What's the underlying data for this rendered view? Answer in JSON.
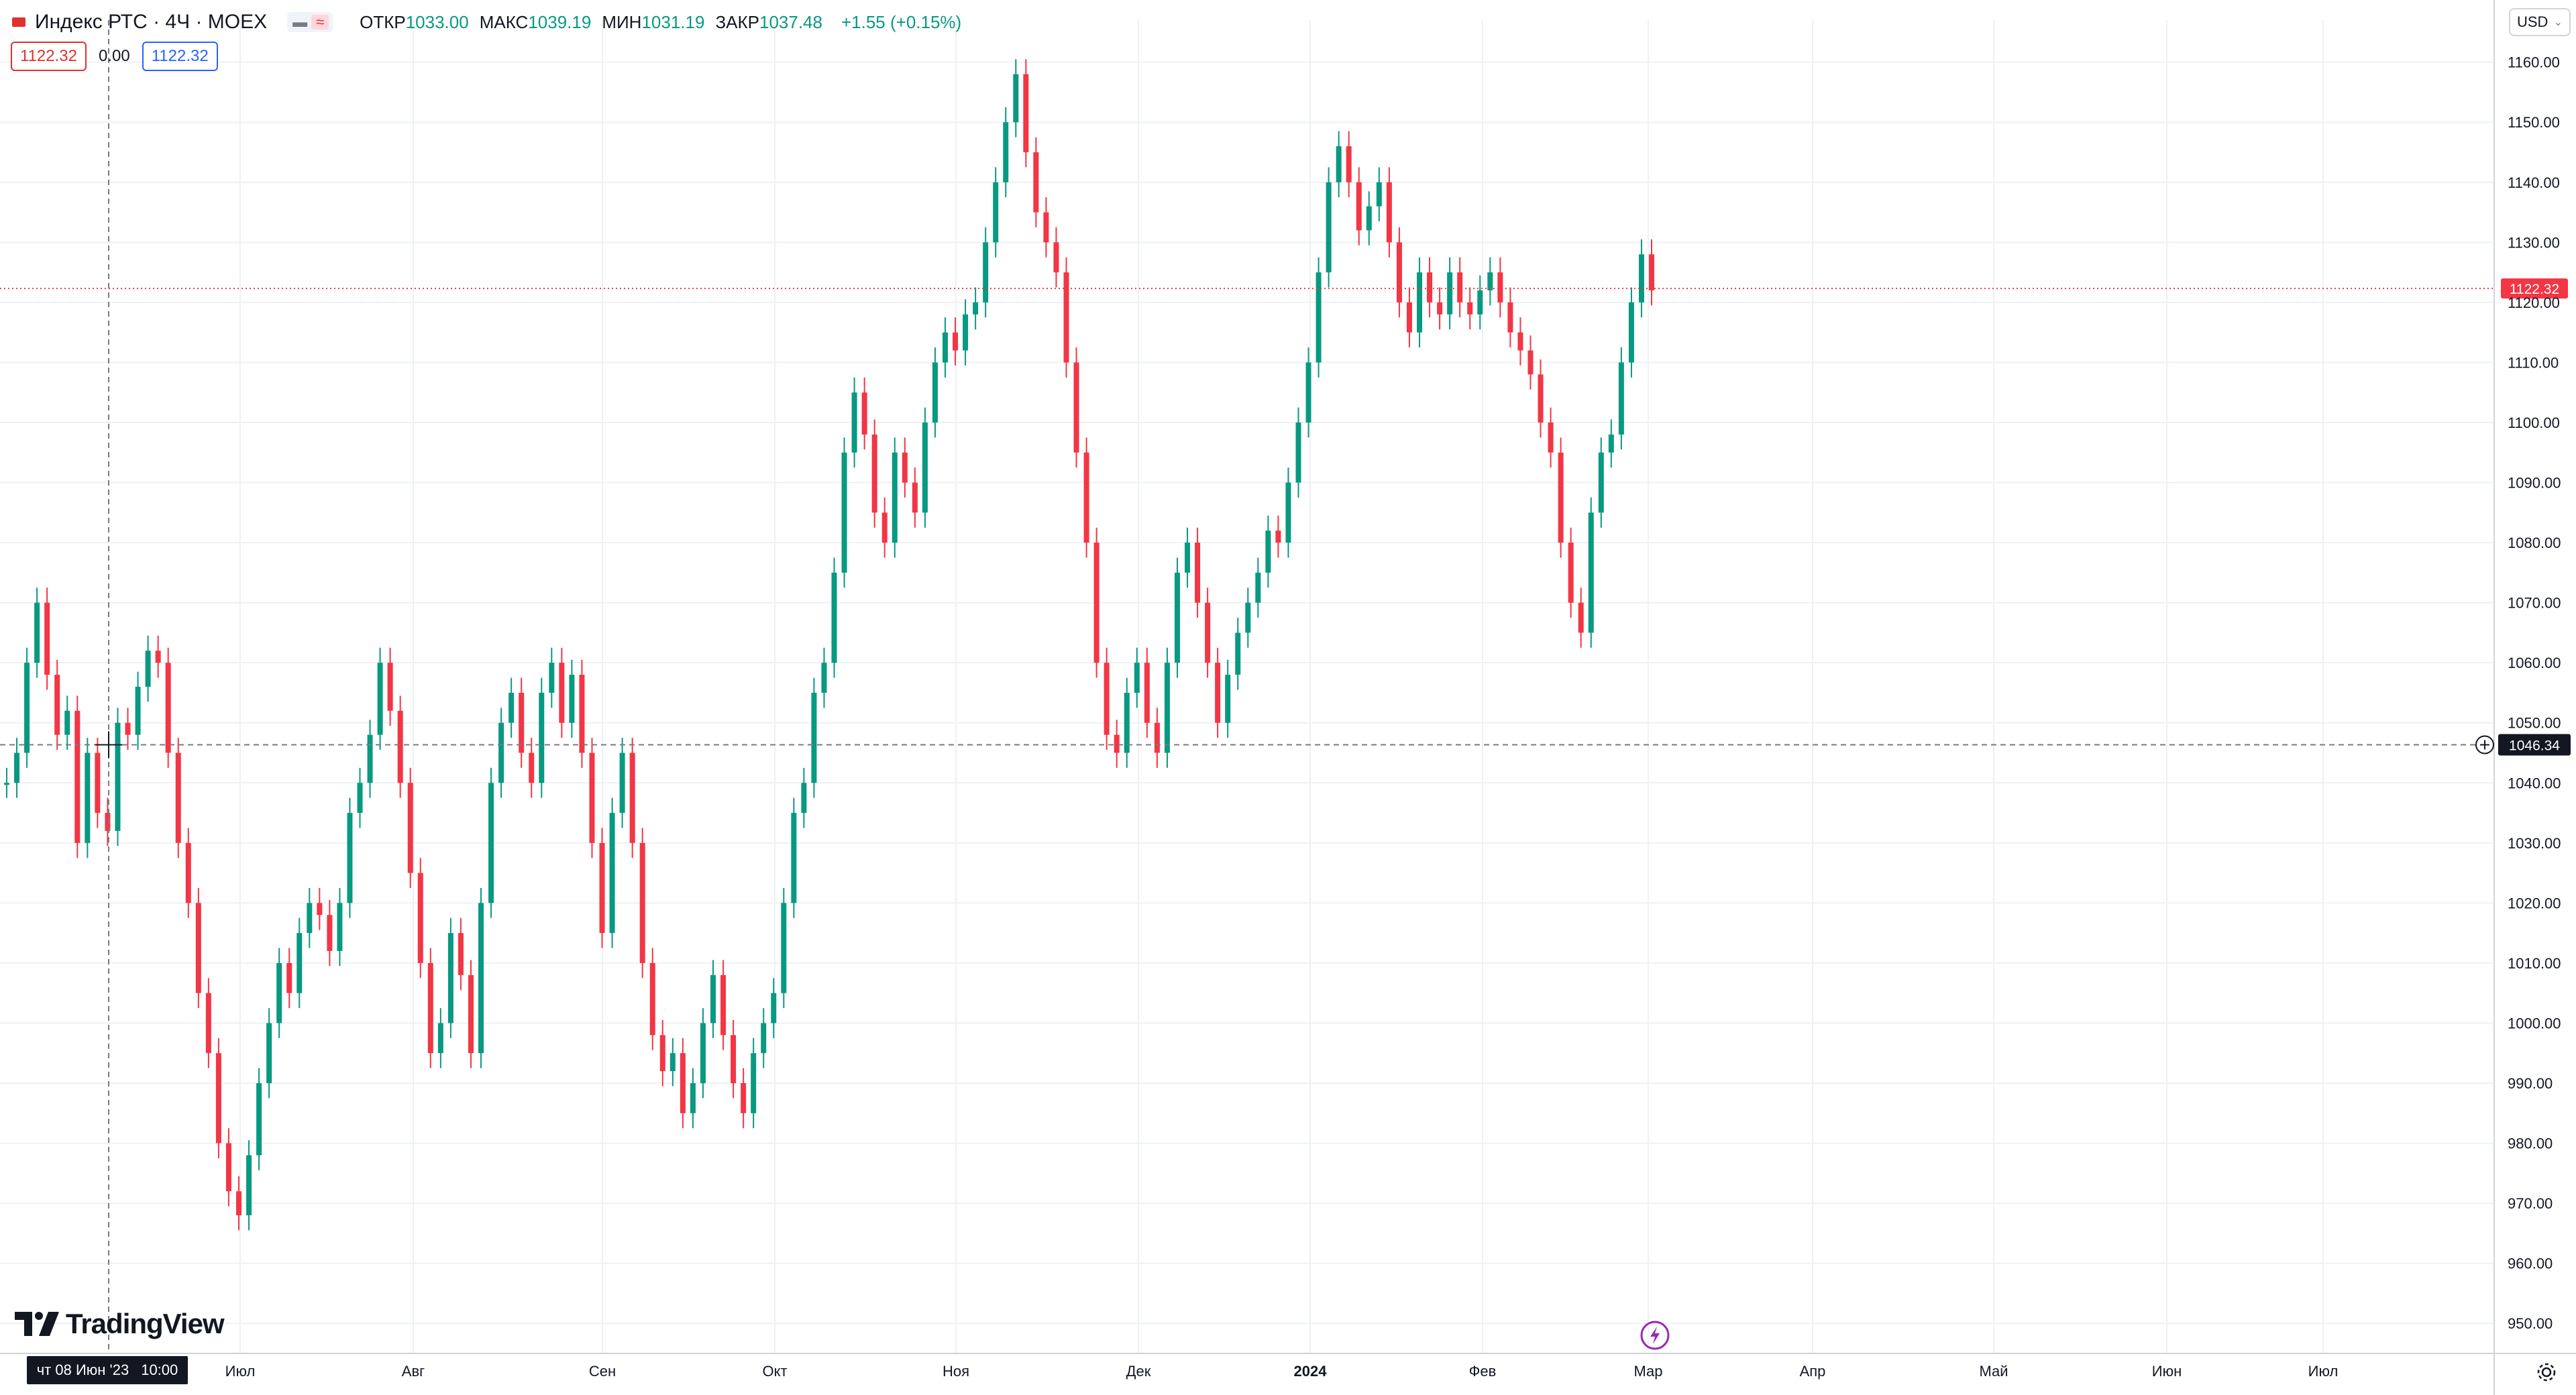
{
  "header": {
    "symbol": "Индекс РТС · 4Ч · MOEX",
    "ohlc": [
      {
        "label": "ОТКР",
        "value": "1033.00"
      },
      {
        "label": "МАКС",
        "value": "1039.19"
      },
      {
        "label": "МИН",
        "value": "1031.19"
      },
      {
        "label": "ЗАКР",
        "value": "1037.48"
      }
    ],
    "change": "+1.55 (+0.15%)",
    "sell_price": "1122.32",
    "spread": "0.00",
    "buy_price": "1122.32",
    "currency": "USD"
  },
  "crosshair": {
    "date": "чт 08 Июн '23",
    "time": "10:00",
    "price_label": "1046.34",
    "price": 1046.34
  },
  "last_price": {
    "label": "1122.32",
    "price": 1122.32
  },
  "logo_text": "TradingView",
  "colors": {
    "up": "#089981",
    "down": "#f23645",
    "grid": "#eef1f5",
    "accent": "#2962ff",
    "last_price": "#f23645"
  },
  "icons": [
    "flag-icon",
    "bars-icon",
    "compare-icon",
    "chevron-down-icon",
    "crosshair-plus-icon",
    "lightning-icon",
    "settings-icon",
    "tradingview-logo-icon"
  ],
  "chart_data": {
    "type": "line",
    "title": "Индекс РТС · 4Ч · MOEX",
    "ylim": [
      945,
      1167
    ],
    "y_ticks": [
      950,
      960,
      970,
      980,
      990,
      1000,
      1010,
      1020,
      1030,
      1040,
      1050,
      1060,
      1070,
      1080,
      1090,
      1100,
      1110,
      1120,
      1130,
      1140,
      1150,
      1160
    ],
    "x_tick_labels": [
      "Июл",
      "Авг",
      "Сен",
      "Окт",
      "Ноя",
      "Дек",
      "2024",
      "Фев",
      "Мар",
      "Апр",
      "Май",
      "Июн",
      "Июл"
    ],
    "grid": true,
    "series": [
      {
        "values": [
          1040,
          1045,
          1060,
          1070,
          1058,
          1048,
          1052,
          1030,
          1045,
          1035,
          1032,
          1050,
          1048,
          1056,
          1062,
          1060,
          1045,
          1030,
          1020,
          1005,
          995,
          980,
          972,
          968,
          978,
          990,
          1000,
          1010,
          1005,
          1015,
          1020,
          1018,
          1012,
          1020,
          1035,
          1040,
          1048,
          1060,
          1052,
          1040,
          1025,
          1010,
          995,
          1000,
          1015,
          1008,
          995,
          1020,
          1040,
          1050,
          1055,
          1045,
          1040,
          1055,
          1060,
          1050,
          1058,
          1045,
          1030,
          1015,
          1035,
          1045,
          1030,
          1010,
          998,
          992,
          995,
          985,
          990,
          1000,
          1008,
          998,
          990,
          985,
          995,
          1000,
          1005,
          1020,
          1035,
          1040,
          1055,
          1060,
          1075,
          1095,
          1105,
          1098,
          1085,
          1080,
          1095,
          1090,
          1085,
          1100,
          1110,
          1115,
          1112,
          1118,
          1120,
          1130,
          1140,
          1150,
          1158,
          1145,
          1135,
          1130,
          1125,
          1110,
          1095,
          1080,
          1060,
          1048,
          1045,
          1055,
          1060,
          1050,
          1045,
          1060,
          1075,
          1080,
          1070,
          1060,
          1050,
          1058,
          1065,
          1070,
          1075,
          1082,
          1080,
          1090,
          1100,
          1110,
          1125,
          1140,
          1146,
          1140,
          1132,
          1136,
          1140,
          1130,
          1120,
          1115,
          1125,
          1120,
          1118,
          1125,
          1120,
          1118,
          1122,
          1125,
          1120,
          1115,
          1112,
          1108,
          1100,
          1095,
          1080,
          1070,
          1065,
          1085,
          1095,
          1098,
          1110,
          1120,
          1128,
          1122
        ]
      }
    ]
  }
}
